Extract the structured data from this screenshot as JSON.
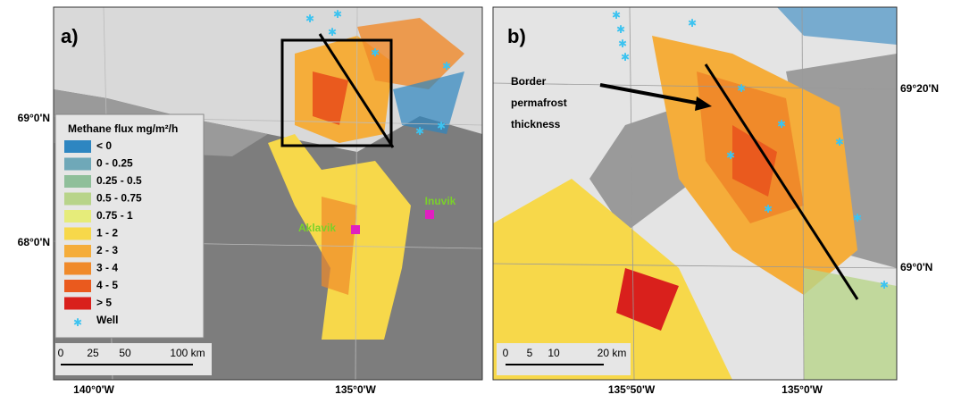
{
  "panel_a": {
    "label": "a)",
    "lat_labels": [
      "69°0'N",
      "68°0'N"
    ],
    "lon_labels": [
      "140°0'W",
      "135°0'W"
    ],
    "legend": {
      "title": "Methane flux mg/m²/h",
      "entries": [
        {
          "label": "< 0",
          "color": "#2e86c1"
        },
        {
          "label": "0 - 0.25",
          "color": "#6fa8b8"
        },
        {
          "label": "0.25 - 0.5",
          "color": "#8fbf9a"
        },
        {
          "label": "0.5 - 0.75",
          "color": "#b8d48a"
        },
        {
          "label": "0.75 - 1",
          "color": "#e6ec7a"
        },
        {
          "label": "1 - 2",
          "color": "#f7d84a"
        },
        {
          "label": "2 - 3",
          "color": "#f5ad3a"
        },
        {
          "label": "3 - 4",
          "color": "#f08a2a"
        },
        {
          "label": "4 - 5",
          "color": "#ea5a1e"
        },
        {
          "label": "> 5",
          "color": "#d9201c"
        }
      ],
      "well": {
        "label": "Well",
        "color": "#3cc3f0"
      }
    },
    "scale": [
      "0",
      "25",
      "50",
      "100 km"
    ],
    "towns": [
      "Aklavik",
      "Inuvik"
    ]
  },
  "panel_b": {
    "label": "b)",
    "annotation": "Border permafrost thickness",
    "lat_labels": [
      "69°20'N",
      "69°0'N"
    ],
    "lon_labels": [
      "135°50'W",
      "135°0'W"
    ],
    "scale": [
      "0",
      "5",
      "10",
      "20 km"
    ]
  }
}
